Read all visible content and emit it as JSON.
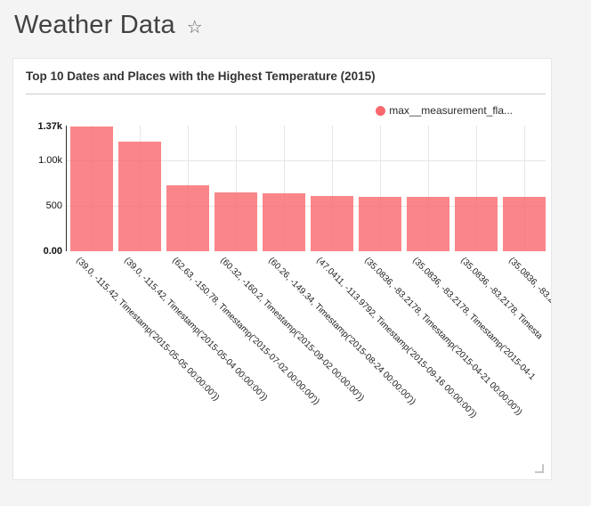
{
  "header": {
    "title": "Weather Data",
    "star_icon": "☆"
  },
  "chart_data": {
    "type": "bar",
    "title": "Top 10 Dates and Places with the Highest Temperature (2015)",
    "legend": [
      {
        "label": "max__measurement_fla...",
        "color": "#f9686d"
      }
    ],
    "legend_position": "top-right",
    "categories": [
      "(39.0, -115.42, Timestamp('2015-05-05 00:00:00'))",
      "(39.0, -115.42, Timestamp('2015-05-04 00:00:00'))",
      "(62.63, -150.78, Timestamp('2015-07-02 00:00:00'))",
      "(60.32, -160.2, Timestamp('2015-09-02 00:00:00'))",
      "(60.26, -149.34, Timestamp('2015-08-24 00:00:00'))",
      "(47.0411, -113.9792, Timestamp('2015-09-16 00:00:00'))",
      "(35.0836, -83.2178, Timestamp('2015-04-21 00:00:00'))",
      "(35.0836, -83.2178, Timestamp('2015-04-1",
      "(35.0836, -83.2178, Timesta",
      "(35.0836, -83.2"
    ],
    "values": [
      1370,
      1200,
      720,
      650,
      640,
      605,
      597,
      595,
      595,
      593
    ],
    "xlabel": "",
    "ylabel": "",
    "ylim": [
      0,
      1370
    ],
    "y_ticks": [
      {
        "label": "0.00",
        "value": 0,
        "bold": true
      },
      {
        "label": "500",
        "value": 500,
        "bold": false
      },
      {
        "label": "1.00k",
        "value": 1000,
        "bold": false
      },
      {
        "label": "1.37k",
        "value": 1370,
        "bold": true
      }
    ],
    "grid": true,
    "bar_color": "#f9686d",
    "bar_opacity": 0.8
  }
}
